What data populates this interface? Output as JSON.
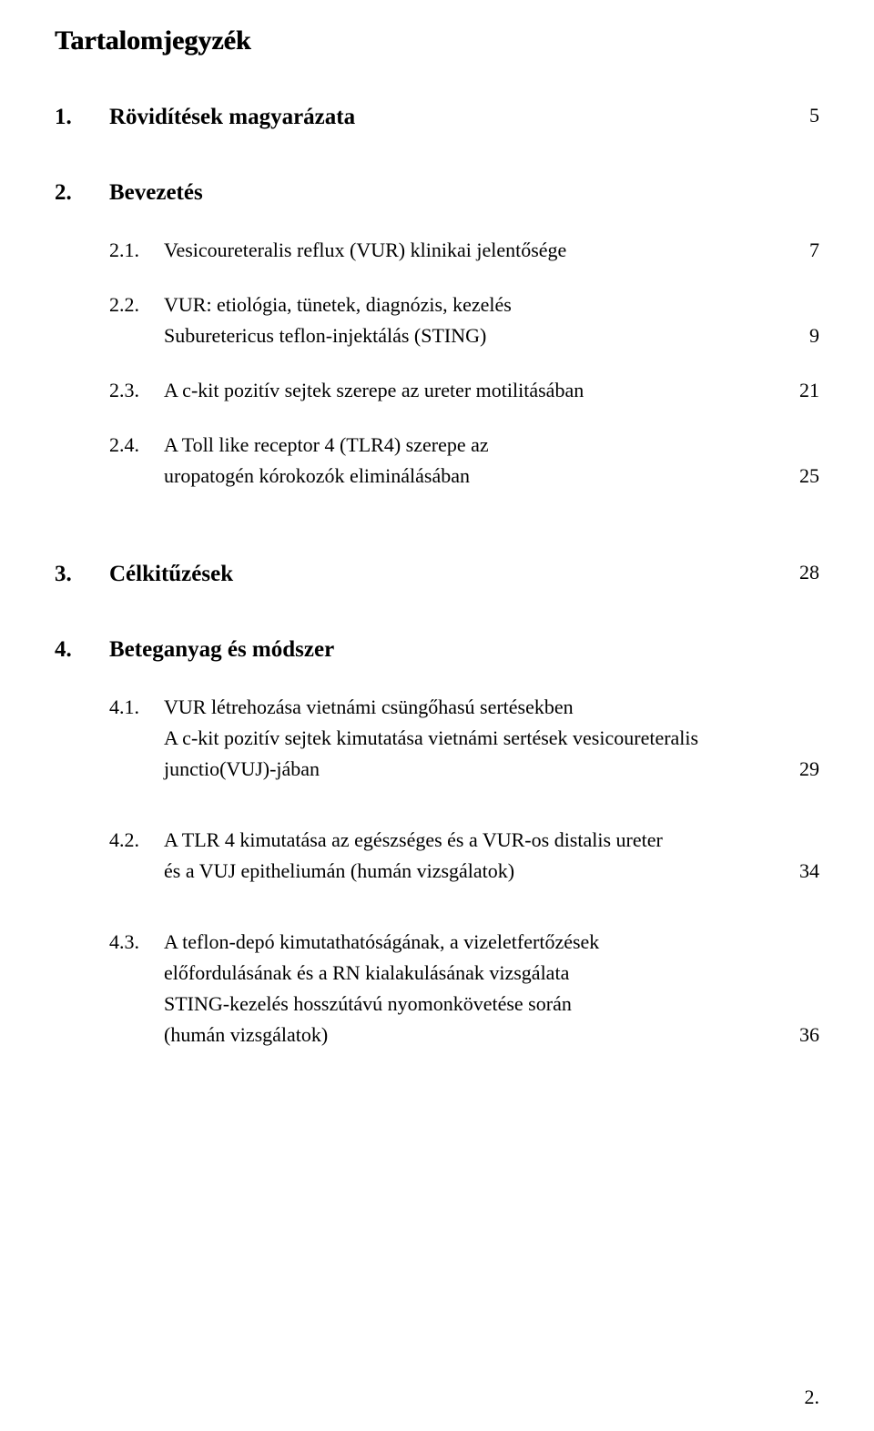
{
  "title": "Tartalomjegyzék",
  "sections": {
    "s1": {
      "num": "1.",
      "label": "Rövidítések magyarázata",
      "page": "5"
    },
    "s2": {
      "num": "2.",
      "label": "Bevezetés",
      "page": ""
    },
    "s3": {
      "num": "3.",
      "label": "Célkitűzések",
      "page": "28"
    },
    "s4": {
      "num": "4.",
      "label": "Beteganyag és módszer",
      "page": ""
    }
  },
  "subs": {
    "s21": {
      "num": "2.1.",
      "label": "Vesicoureteralis reflux (VUR) klinikai jelentősége",
      "page": "7"
    },
    "s22": {
      "num": "2.2.",
      "label": "VUR: etiológia, tünetek, diagnózis, kezelés",
      "cont": "Suburetericus teflon-injektálás (STING)",
      "page": "9"
    },
    "s23": {
      "num": "2.3.",
      "label": "A c-kit pozitív sejtek szerepe az ureter motilitásában",
      "page": "21"
    },
    "s24": {
      "num": "2.4.",
      "label": "A Toll like receptor 4 (TLR4) szerepe az",
      "cont": "uropatogén kórokozók eliminálásában",
      "page": "25"
    },
    "s41": {
      "num": "4.1.",
      "label": "VUR létrehozása vietnámi csüngőhasú sertésekben",
      "cont1": "A c-kit pozitív sejtek kimutatása vietnámi sertések vesicoureteralis",
      "cont2": "junctio(VUJ)-jában",
      "page": "29"
    },
    "s42": {
      "num": "4.2.",
      "label": "A TLR 4 kimutatása az egészséges és a VUR-os distalis ureter",
      "cont": "és a VUJ epitheliumán (humán vizsgálatok)",
      "page": "34"
    },
    "s43": {
      "num": "4.3.",
      "label": "A teflon-depó kimutathatóságának, a vizeletfertőzések",
      "cont1": "előfordulásának és a RN kialakulásának vizsgálata",
      "cont2": "STING-kezelés hosszútávú nyomonkövetése során",
      "cont3": "(humán vizsgálatok)",
      "page": "36"
    }
  },
  "footer_page": "2."
}
